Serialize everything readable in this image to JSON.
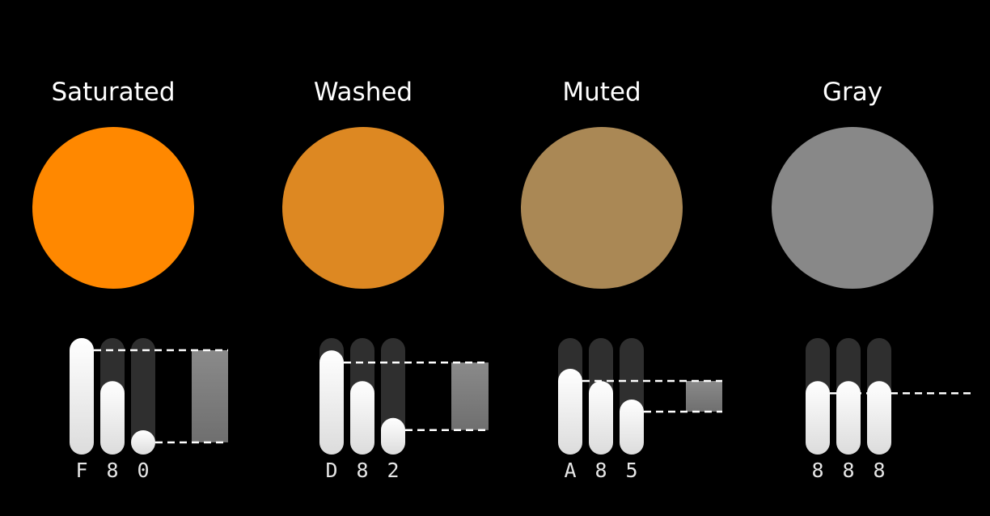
{
  "columns": [
    {
      "title": "Saturated",
      "color": "#FF8800",
      "hex": [
        "F",
        "8",
        "0"
      ],
      "levels": [
        15,
        8,
        0
      ]
    },
    {
      "title": "Washed",
      "color": "#DD8822",
      "hex": [
        "D",
        "8",
        "2"
      ],
      "levels": [
        13,
        8,
        2
      ]
    },
    {
      "title": "Muted",
      "color": "#AA8855",
      "hex": [
        "A",
        "8",
        "5"
      ],
      "levels": [
        10,
        8,
        5
      ]
    },
    {
      "title": "Gray",
      "color": "#888888",
      "hex": [
        "8",
        "8",
        "8"
      ],
      "levels": [
        8,
        8,
        8
      ]
    }
  ],
  "colors": {
    "background": "#000000",
    "track": "#2f2f2f",
    "knob_top": "#ffffff",
    "knob_bottom": "#dcdcdc",
    "range_top": "#8a8a8a",
    "range_bottom": "#6f6f6f",
    "dash": "#ffffff"
  }
}
